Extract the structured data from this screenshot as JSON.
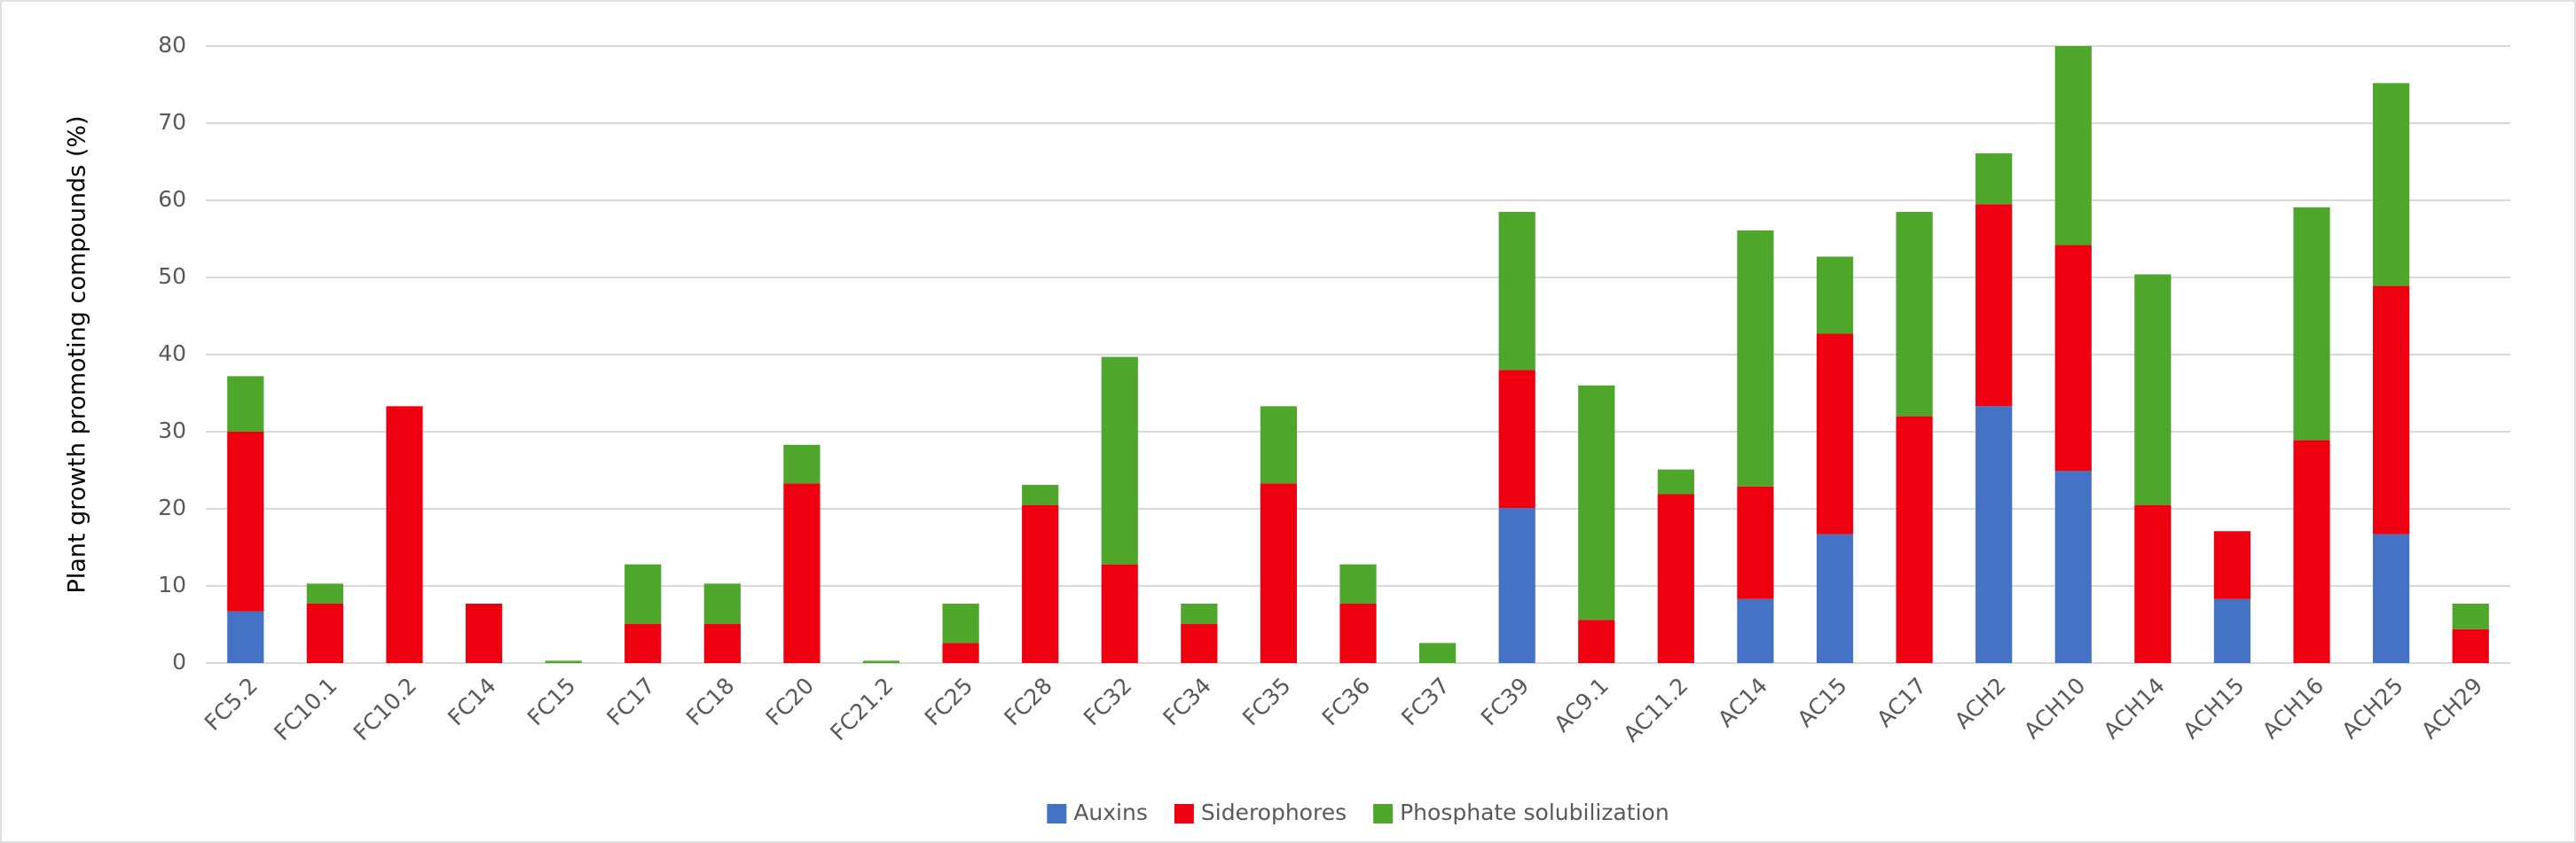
{
  "chart_data": {
    "type": "stacked_bar",
    "y_label": "Plant growth promoting compounds (%)",
    "categories": [
      "FC5.2",
      "FC10.1",
      "FC10.2",
      "FC14",
      "FC15",
      "FC17",
      "FC18",
      "FC20",
      "FC21.2",
      "FC25",
      "FC28",
      "FC32",
      "FC34",
      "FC35",
      "FC36",
      "FC37",
      "FC39",
      "AC9.1",
      "AC11.2",
      "AC14",
      "AC15",
      "AC17",
      "ACH2",
      "ACH10",
      "ACH14",
      "ACH15",
      "ACH16",
      "ACH25",
      "ACH29"
    ],
    "series": [
      {
        "name": "Auxins",
        "color": "#4472c4",
        "values": [
          6.7,
          0,
          0,
          0,
          0,
          0,
          0,
          0,
          0,
          0,
          0,
          0,
          0,
          0,
          0,
          0,
          20.1,
          0,
          0,
          8.3,
          16.7,
          0,
          33.3,
          24.9,
          0,
          8.3,
          0,
          16.7,
          0
        ]
      },
      {
        "name": "Siderophores",
        "color": "#ee0010",
        "values": [
          23.3,
          7.7,
          33.3,
          7.7,
          0,
          5.1,
          5.1,
          23.3,
          0,
          2.6,
          20.5,
          12.8,
          5.1,
          23.3,
          7.7,
          0,
          17.9,
          5.6,
          21.9,
          14.6,
          26,
          32,
          26.2,
          29.3,
          20.5,
          8.8,
          28.9,
          32.2,
          4.4
        ]
      },
      {
        "name": "Phosphate solubilization",
        "color": "#4ea72a",
        "values": [
          7.2,
          2.6,
          0,
          0,
          0.3,
          7.7,
          5.2,
          5,
          0.3,
          5.1,
          2.6,
          26.9,
          2.6,
          10,
          5.1,
          2.6,
          20.5,
          30.4,
          3.2,
          33.2,
          10,
          26.5,
          6.6,
          25.8,
          29.9,
          0,
          30.2,
          26.3,
          3.3
        ]
      }
    ],
    "ylim": [
      0,
      80
    ],
    "yticks": [
      0,
      10,
      20,
      30,
      40,
      50,
      60,
      70,
      80
    ],
    "grid": true,
    "legend": "bottom"
  }
}
